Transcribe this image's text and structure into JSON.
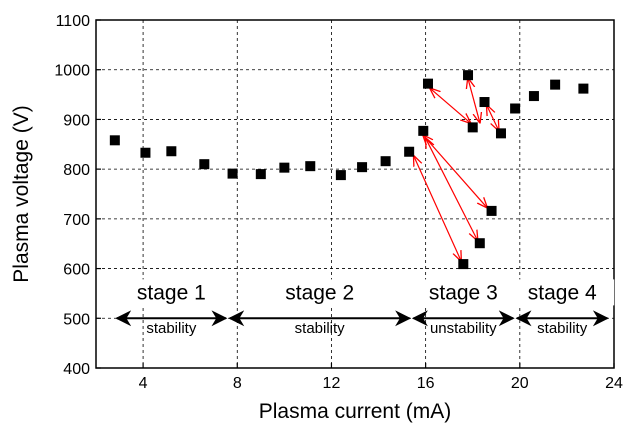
{
  "chart_data": {
    "type": "scatter",
    "xlabel": "Plasma current (mA)",
    "ylabel": "Plasma voltage (V)",
    "xlim": [
      2,
      24
    ],
    "ylim": [
      400,
      1100
    ],
    "xticks": [
      4,
      8,
      12,
      16,
      20,
      24
    ],
    "yticks": [
      400,
      500,
      600,
      700,
      800,
      900,
      1000,
      1100
    ],
    "grid": "dashed",
    "series": [
      {
        "marker": "square",
        "color": "#000000",
        "points": [
          {
            "x": 2.8,
            "y": 858
          },
          {
            "x": 4.1,
            "y": 833
          },
          {
            "x": 5.2,
            "y": 836
          },
          {
            "x": 6.6,
            "y": 810
          },
          {
            "x": 7.8,
            "y": 791
          },
          {
            "x": 9.0,
            "y": 790
          },
          {
            "x": 10.0,
            "y": 803
          },
          {
            "x": 11.1,
            "y": 806
          },
          {
            "x": 12.4,
            "y": 788
          },
          {
            "x": 13.3,
            "y": 804
          },
          {
            "x": 14.3,
            "y": 816
          },
          {
            "x": 15.3,
            "y": 835
          },
          {
            "x": 15.9,
            "y": 877
          },
          {
            "x": 16.1,
            "y": 972
          },
          {
            "x": 17.6,
            "y": 609
          },
          {
            "x": 17.8,
            "y": 989
          },
          {
            "x": 18.0,
            "y": 884
          },
          {
            "x": 18.3,
            "y": 651
          },
          {
            "x": 18.5,
            "y": 935
          },
          {
            "x": 18.8,
            "y": 716
          },
          {
            "x": 19.2,
            "y": 872
          },
          {
            "x": 19.8,
            "y": 922
          },
          {
            "x": 20.6,
            "y": 947
          },
          {
            "x": 21.5,
            "y": 970
          },
          {
            "x": 22.7,
            "y": 962
          }
        ]
      }
    ],
    "annotations": {
      "arrow_color": "#ff0000",
      "double_arrows": [
        {
          "from": {
            "x": 16.2,
            "y": 962
          },
          "to": {
            "x": 17.9,
            "y": 893
          }
        },
        {
          "from": {
            "x": 17.8,
            "y": 982
          },
          "to": {
            "x": 18.3,
            "y": 894
          }
        },
        {
          "from": {
            "x": 15.9,
            "y": 868
          },
          "to": {
            "x": 18.6,
            "y": 723
          }
        },
        {
          "from": {
            "x": 15.5,
            "y": 826
          },
          "to": {
            "x": 17.5,
            "y": 616
          }
        },
        {
          "from": {
            "x": 16.0,
            "y": 862
          },
          "to": {
            "x": 18.2,
            "y": 657
          }
        },
        {
          "from": {
            "x": 18.6,
            "y": 928
          },
          "to": {
            "x": 19.1,
            "y": 878
          }
        }
      ],
      "stages": [
        {
          "label": "stage 1",
          "sublabel": "stability",
          "x_from": 2.8,
          "x_to": 7.6
        },
        {
          "label": "stage 2",
          "sublabel": "stability",
          "x_from": 7.6,
          "x_to": 15.4
        },
        {
          "label": "stage 3",
          "sublabel": "unstability",
          "x_from": 15.4,
          "x_to": 19.8
        },
        {
          "label": "stage 4",
          "sublabel": "stability",
          "x_from": 19.8,
          "x_to": 23.8
        }
      ],
      "stage_arrow_y": 500,
      "stage_label_y": 538,
      "stage_sublabel_y": 470
    }
  }
}
